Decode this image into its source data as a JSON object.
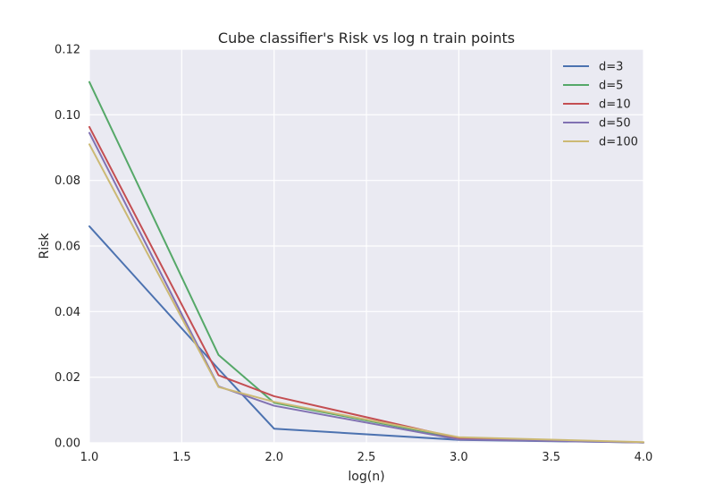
{
  "chart_data": {
    "type": "line",
    "title": "Cube classifier's Risk vs log n train points",
    "xlabel": "log(n)",
    "ylabel": "Risk",
    "xlim": [
      1.0,
      4.0
    ],
    "ylim": [
      0.0,
      0.12
    ],
    "xticks": [
      "1.0",
      "1.5",
      "2.0",
      "2.5",
      "3.0",
      "3.5",
      "4.0"
    ],
    "yticks": [
      "0.00",
      "0.02",
      "0.04",
      "0.06",
      "0.08",
      "0.10",
      "0.12"
    ],
    "grid": true,
    "legend_position": "top-right",
    "x": [
      1.0,
      1.699,
      2.0,
      3.0,
      4.0
    ],
    "series": [
      {
        "name": "d=3",
        "color": "#4c72b0",
        "values": [
          0.066,
          0.0225,
          0.0043,
          0.0009,
          0.0001
        ]
      },
      {
        "name": "d=5",
        "color": "#55a868",
        "values": [
          0.11,
          0.0268,
          0.0122,
          0.0014,
          0.0001
        ]
      },
      {
        "name": "d=10",
        "color": "#c44e52",
        "values": [
          0.0963,
          0.0206,
          0.0142,
          0.0014,
          0.0001
        ]
      },
      {
        "name": "d=50",
        "color": "#8172b2",
        "values": [
          0.0945,
          0.0172,
          0.0113,
          0.001,
          0.0001
        ]
      },
      {
        "name": "d=100",
        "color": "#ccb974",
        "values": [
          0.091,
          0.017,
          0.0125,
          0.0017,
          0.0002
        ]
      }
    ]
  }
}
